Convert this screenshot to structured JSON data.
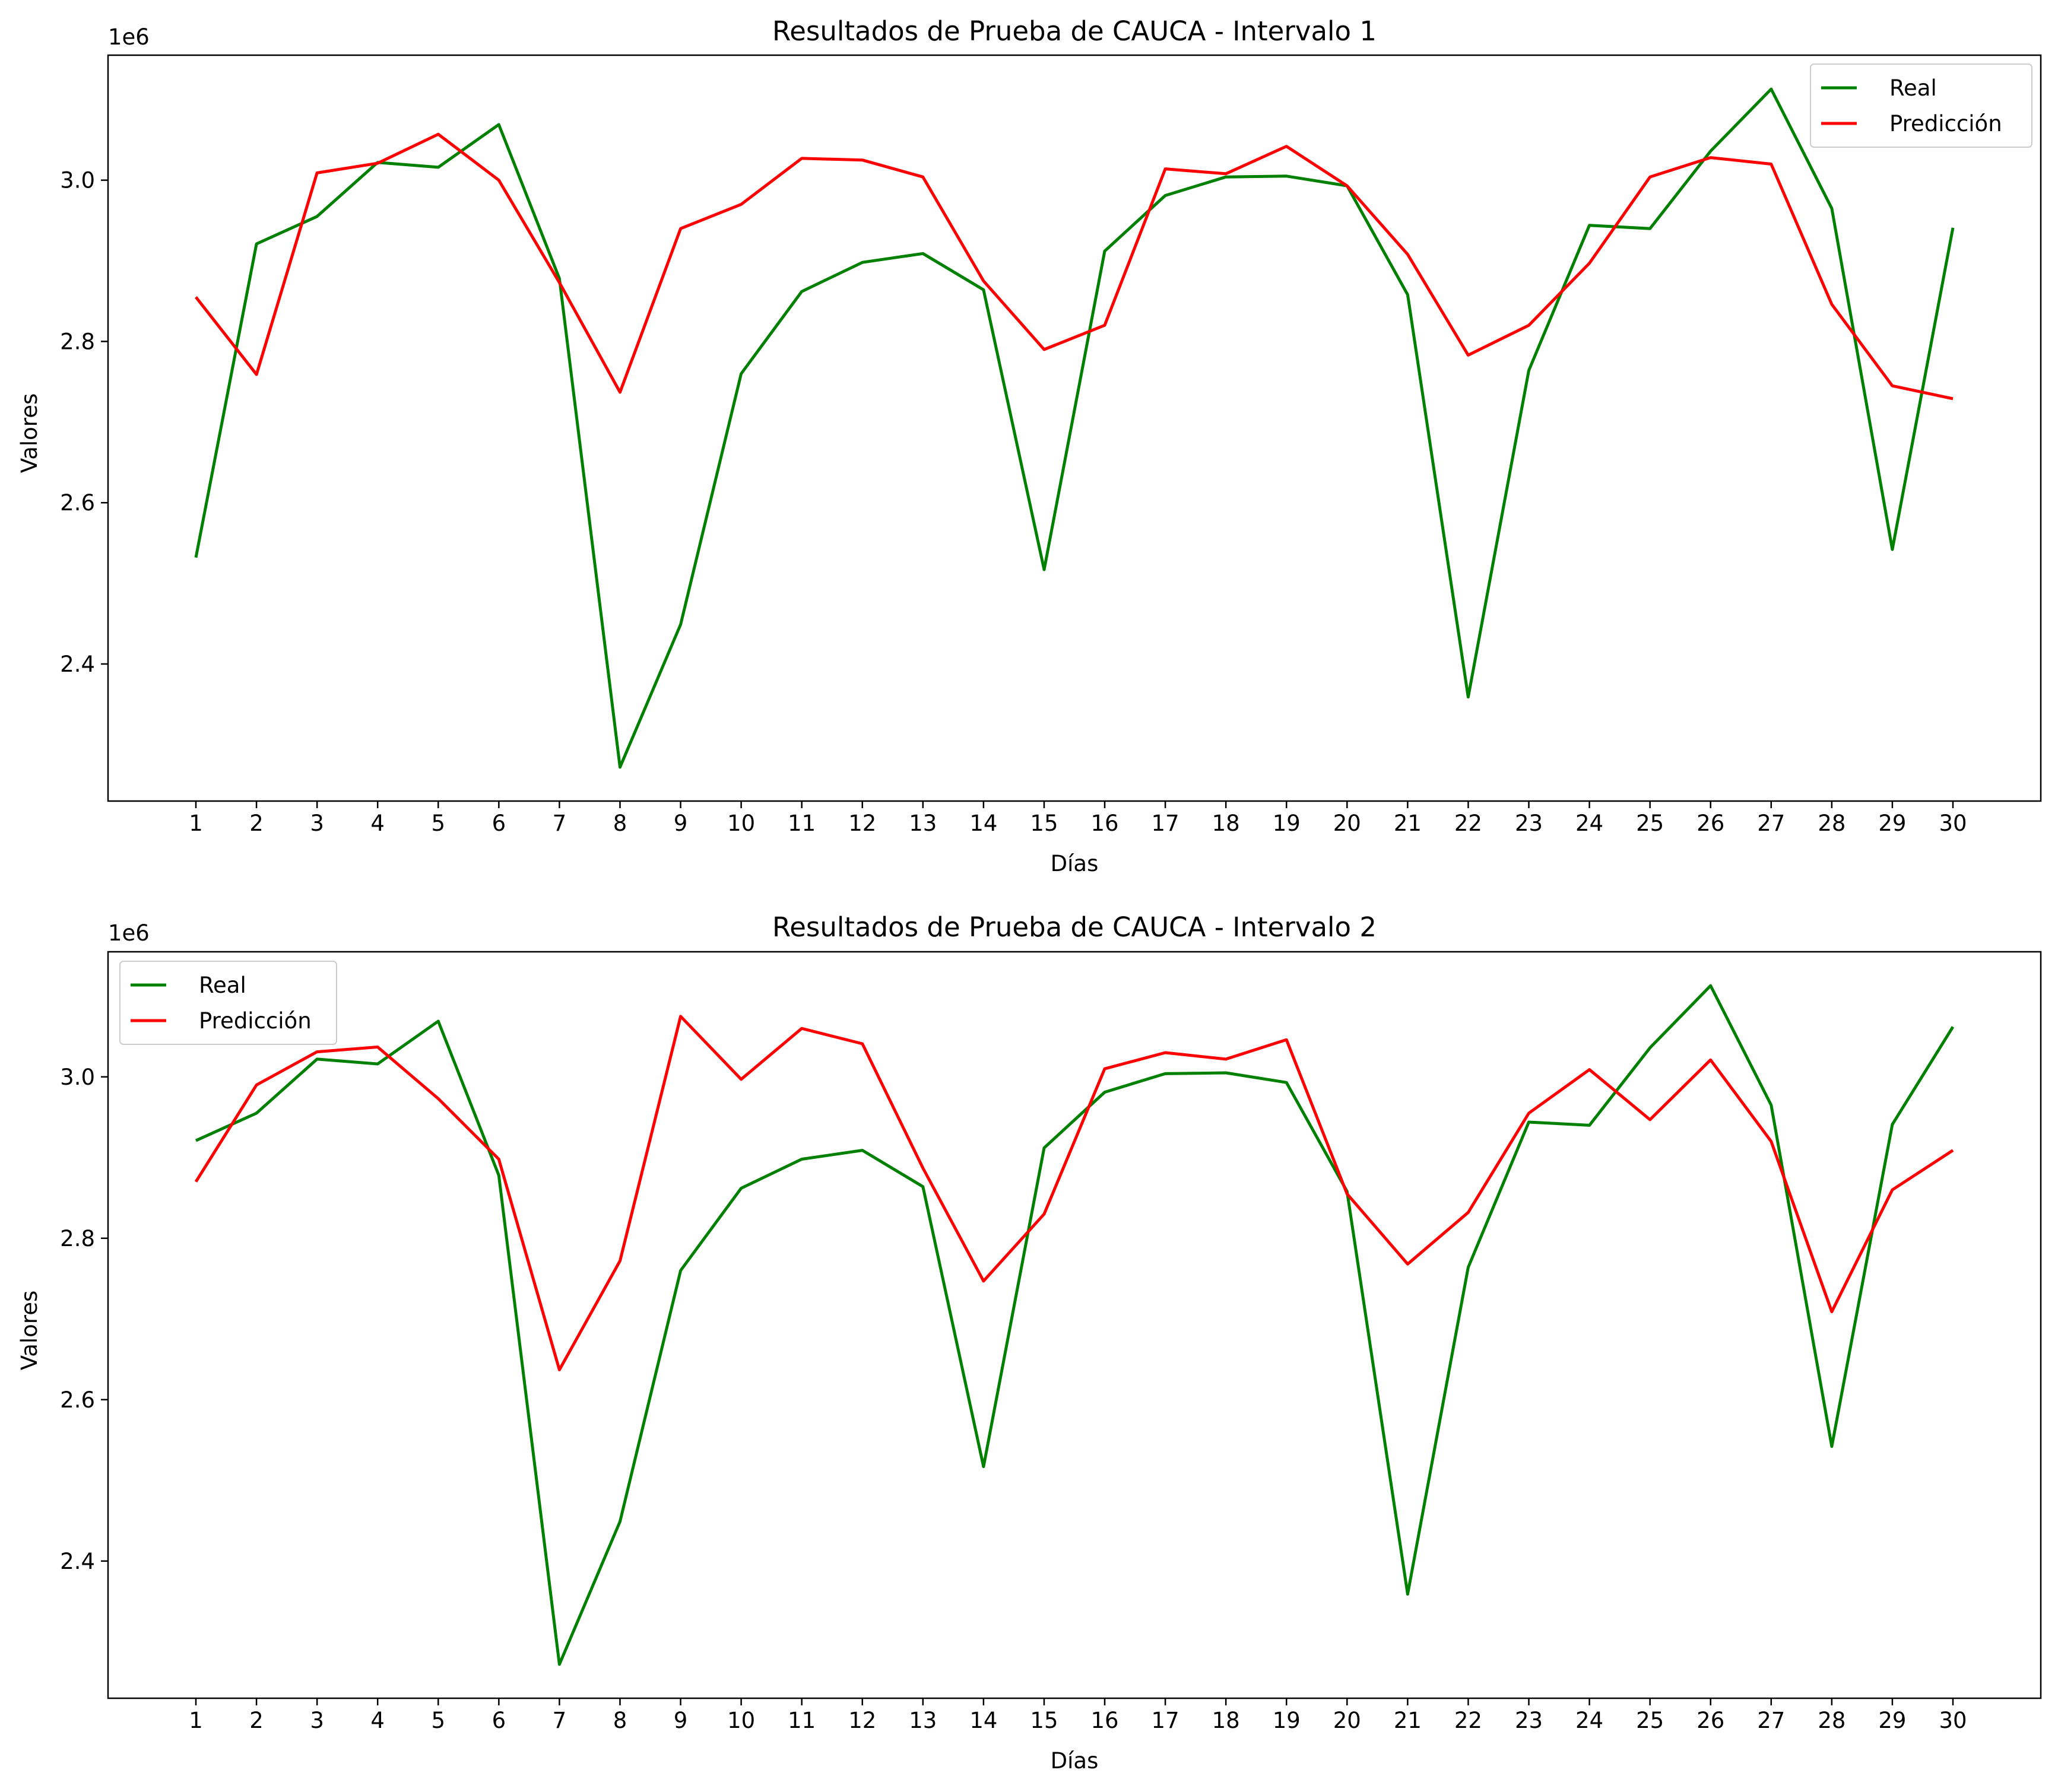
{
  "chart_data": [
    {
      "type": "line",
      "title": "Resultados de Prueba de CAUCA - Intervalo 1",
      "xlabel": "Días",
      "ylabel": "Valores",
      "y_offset_label": "1e6",
      "x": [
        1,
        2,
        3,
        4,
        5,
        6,
        7,
        8,
        9,
        10,
        11,
        12,
        13,
        14,
        15,
        16,
        17,
        18,
        19,
        20,
        21,
        22,
        23,
        24,
        25,
        26,
        27,
        28,
        29,
        30
      ],
      "ylim": [
        2.23,
        3.155
      ],
      "yticks": [
        "2.4",
        "2.6",
        "2.8",
        "3.0"
      ],
      "legend_position": "upper right",
      "series": [
        {
          "name": "Real",
          "color": "#008000",
          "values": [
            2.532,
            2.921,
            2.955,
            3.022,
            3.016,
            3.069,
            2.878,
            2.272,
            2.449,
            2.76,
            2.862,
            2.898,
            2.909,
            2.864,
            2.517,
            2.912,
            2.981,
            3.004,
            3.005,
            2.993,
            2.858,
            2.359,
            2.764,
            2.944,
            2.94,
            3.036,
            3.113,
            2.965,
            2.542,
            2.941
          ]
        },
        {
          "name": "Predicción",
          "color": "#ff0000",
          "values": [
            2.855,
            2.759,
            3.009,
            3.021,
            3.057,
            3.0,
            2.873,
            2.737,
            2.94,
            2.97,
            3.027,
            3.025,
            3.004,
            2.875,
            2.79,
            2.82,
            3.014,
            3.008,
            3.042,
            2.993,
            2.908,
            2.783,
            2.82,
            2.897,
            3.004,
            3.028,
            3.02,
            2.846,
            2.745,
            2.729
          ]
        }
      ]
    },
    {
      "type": "line",
      "title": "Resultados de Prueba de CAUCA - Intervalo 2",
      "xlabel": "Días",
      "ylabel": "Valores",
      "y_offset_label": "1e6",
      "x": [
        1,
        2,
        3,
        4,
        5,
        6,
        7,
        8,
        9,
        10,
        11,
        12,
        13,
        14,
        15,
        16,
        17,
        18,
        19,
        20,
        21,
        22,
        23,
        24,
        25,
        26,
        27,
        28,
        29,
        30
      ],
      "ylim": [
        2.23,
        3.155
      ],
      "yticks": [
        "2.4",
        "2.6",
        "2.8",
        "3.0"
      ],
      "legend_position": "upper left",
      "series": [
        {
          "name": "Real",
          "color": "#008000",
          "values": [
            2.921,
            2.955,
            3.022,
            3.016,
            3.069,
            2.878,
            2.272,
            2.449,
            2.76,
            2.862,
            2.898,
            2.909,
            2.864,
            2.517,
            2.912,
            2.981,
            3.004,
            3.005,
            2.993,
            2.858,
            2.359,
            2.764,
            2.944,
            2.94,
            3.036,
            3.113,
            2.965,
            2.542,
            2.941,
            3.062
          ]
        },
        {
          "name": "Predicción",
          "color": "#ff0000",
          "values": [
            2.87,
            2.99,
            3.031,
            3.037,
            2.973,
            2.898,
            2.637,
            2.772,
            3.075,
            2.997,
            3.06,
            3.041,
            2.887,
            2.747,
            2.83,
            3.01,
            3.03,
            3.022,
            3.046,
            2.855,
            2.768,
            2.832,
            2.955,
            3.009,
            2.947,
            3.021,
            2.92,
            2.709,
            2.86,
            2.909
          ]
        }
      ]
    }
  ]
}
